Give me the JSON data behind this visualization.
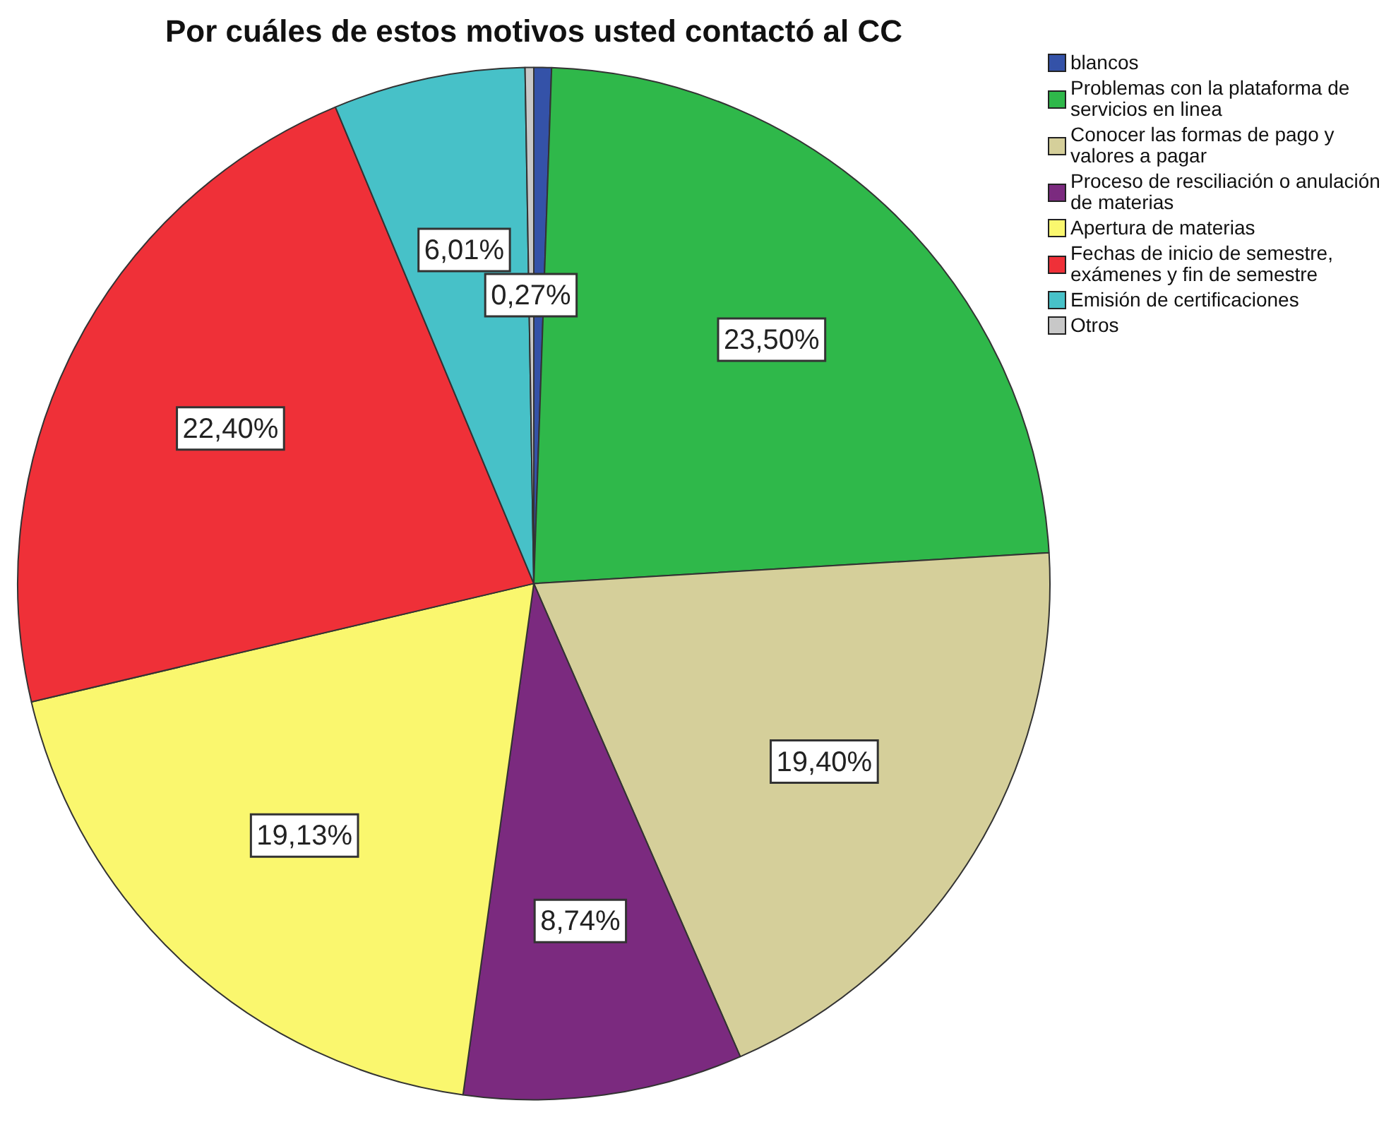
{
  "chart_data": {
    "type": "pie",
    "title": "Por cuáles de estos motivos usted contactó al CC",
    "categories": [
      "blancos",
      "Problemas con la plataforma de servicios en linea",
      "Conocer las formas de pago y valores a pagar",
      "Proceso de resciliación o anulación de materias",
      "Apertura de materias",
      "Fechas de inicio de semestre, exámenes y fin de semestre",
      "Emisión de certificaciones",
      "Otros"
    ],
    "values": [
      0.55,
      23.5,
      19.4,
      8.74,
      19.13,
      22.4,
      6.01,
      0.27
    ],
    "value_labels": [
      null,
      "23,50%",
      "19,40%",
      "8,74%",
      "19,13%",
      "22,40%",
      "6,01%",
      "0,27%"
    ],
    "colors": [
      "#3452a8",
      "#2fb84a",
      "#d5cf9a",
      "#7b2a7f",
      "#faf76e",
      "#ef3038",
      "#47c1c8",
      "#c8c8c8"
    ],
    "legend": "top right"
  }
}
